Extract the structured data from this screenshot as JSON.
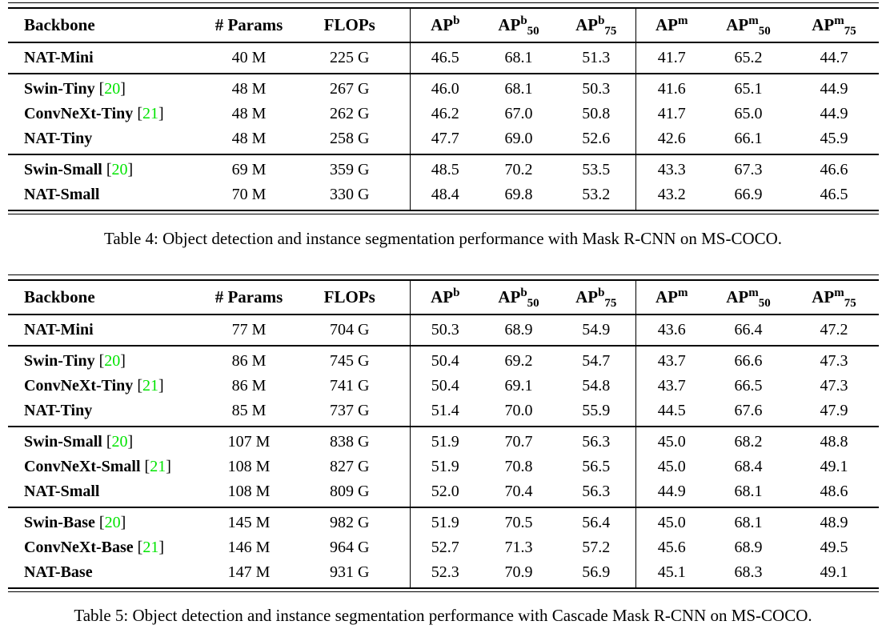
{
  "colors": {
    "background": "#ffffff",
    "text": "#000000",
    "citation_green": "#00e400"
  },
  "columns": [
    {
      "key": "backbone",
      "label": "Backbone",
      "align": "left"
    },
    {
      "key": "params",
      "label": "# Params"
    },
    {
      "key": "flops",
      "label": "FLOPs"
    },
    {
      "key": "ap-b",
      "base": "AP",
      "sup": "b",
      "sub": "",
      "bar": true
    },
    {
      "key": "ap-b-50",
      "base": "AP",
      "sup": "b",
      "sub": "50"
    },
    {
      "key": "ap-b-75",
      "base": "AP",
      "sup": "b",
      "sub": "75"
    },
    {
      "key": "ap-m",
      "base": "AP",
      "sup": "m",
      "sub": "",
      "bar": true
    },
    {
      "key": "ap-m-50",
      "base": "AP",
      "sup": "m",
      "sub": "50"
    },
    {
      "key": "ap-m-75",
      "base": "AP",
      "sup": "m",
      "sub": "75"
    }
  ],
  "tables": [
    {
      "caption": "Table 4: Object detection and instance segmentation performance with Mask R-CNN on MS-COCO.",
      "groups": [
        {
          "rows": [
            {
              "backbone": "NAT-Mini",
              "cite": null,
              "params": "40 M",
              "flops": "225 G",
              "values": [
                "46.5",
                "68.1",
                "51.3",
                "41.7",
                "65.2",
                "44.7"
              ]
            }
          ]
        },
        {
          "rows": [
            {
              "backbone": "Swin-Tiny",
              "cite": "20",
              "params": "48 M",
              "flops": "267 G",
              "values": [
                "46.0",
                "68.1",
                "50.3",
                "41.6",
                "65.1",
                "44.9"
              ]
            },
            {
              "backbone": "ConvNeXt-Tiny",
              "cite": "21",
              "params": "48 M",
              "flops": "262 G",
              "values": [
                "46.2",
                "67.0",
                "50.8",
                "41.7",
                "65.0",
                "44.9"
              ]
            },
            {
              "backbone": "NAT-Tiny",
              "cite": null,
              "params": "48 M",
              "flops": "258 G",
              "values": [
                "47.7",
                "69.0",
                "52.6",
                "42.6",
                "66.1",
                "45.9"
              ]
            }
          ]
        },
        {
          "rows": [
            {
              "backbone": "Swin-Small",
              "cite": "20",
              "params": "69 M",
              "flops": "359 G",
              "values": [
                "48.5",
                "70.2",
                "53.5",
                "43.3",
                "67.3",
                "46.6"
              ]
            },
            {
              "backbone": "NAT-Small",
              "cite": null,
              "params": "70 M",
              "flops": "330 G",
              "values": [
                "48.4",
                "69.8",
                "53.2",
                "43.2",
                "66.9",
                "46.5"
              ]
            }
          ]
        }
      ]
    },
    {
      "caption": "Table 5: Object detection and instance segmentation performance with Cascade Mask R-CNN on MS-COCO.",
      "groups": [
        {
          "rows": [
            {
              "backbone": "NAT-Mini",
              "cite": null,
              "params": "77 M",
              "flops": "704 G",
              "values": [
                "50.3",
                "68.9",
                "54.9",
                "43.6",
                "66.4",
                "47.2"
              ]
            }
          ]
        },
        {
          "rows": [
            {
              "backbone": "Swin-Tiny",
              "cite": "20",
              "params": "86 M",
              "flops": "745 G",
              "values": [
                "50.4",
                "69.2",
                "54.7",
                "43.7",
                "66.6",
                "47.3"
              ]
            },
            {
              "backbone": "ConvNeXt-Tiny",
              "cite": "21",
              "params": "86 M",
              "flops": "741 G",
              "values": [
                "50.4",
                "69.1",
                "54.8",
                "43.7",
                "66.5",
                "47.3"
              ]
            },
            {
              "backbone": "NAT-Tiny",
              "cite": null,
              "params": "85 M",
              "flops": "737 G",
              "values": [
                "51.4",
                "70.0",
                "55.9",
                "44.5",
                "67.6",
                "47.9"
              ]
            }
          ]
        },
        {
          "rows": [
            {
              "backbone": "Swin-Small",
              "cite": "20",
              "params": "107 M",
              "flops": "838 G",
              "values": [
                "51.9",
                "70.7",
                "56.3",
                "45.0",
                "68.2",
                "48.8"
              ]
            },
            {
              "backbone": "ConvNeXt-Small",
              "cite": "21",
              "params": "108 M",
              "flops": "827 G",
              "values": [
                "51.9",
                "70.8",
                "56.5",
                "45.0",
                "68.4",
                "49.1"
              ]
            },
            {
              "backbone": "NAT-Small",
              "cite": null,
              "params": "108 M",
              "flops": "809 G",
              "values": [
                "52.0",
                "70.4",
                "56.3",
                "44.9",
                "68.1",
                "48.6"
              ]
            }
          ]
        },
        {
          "rows": [
            {
              "backbone": "Swin-Base",
              "cite": "20",
              "params": "145 M",
              "flops": "982 G",
              "values": [
                "51.9",
                "70.5",
                "56.4",
                "45.0",
                "68.1",
                "48.9"
              ]
            },
            {
              "backbone": "ConvNeXt-Base",
              "cite": "21",
              "params": "146 M",
              "flops": "964 G",
              "values": [
                "52.7",
                "71.3",
                "57.2",
                "45.6",
                "68.9",
                "49.5"
              ]
            },
            {
              "backbone": "NAT-Base",
              "cite": null,
              "params": "147 M",
              "flops": "931 G",
              "values": [
                "52.3",
                "70.9",
                "56.9",
                "45.1",
                "68.3",
                "49.1"
              ]
            }
          ]
        }
      ]
    }
  ]
}
